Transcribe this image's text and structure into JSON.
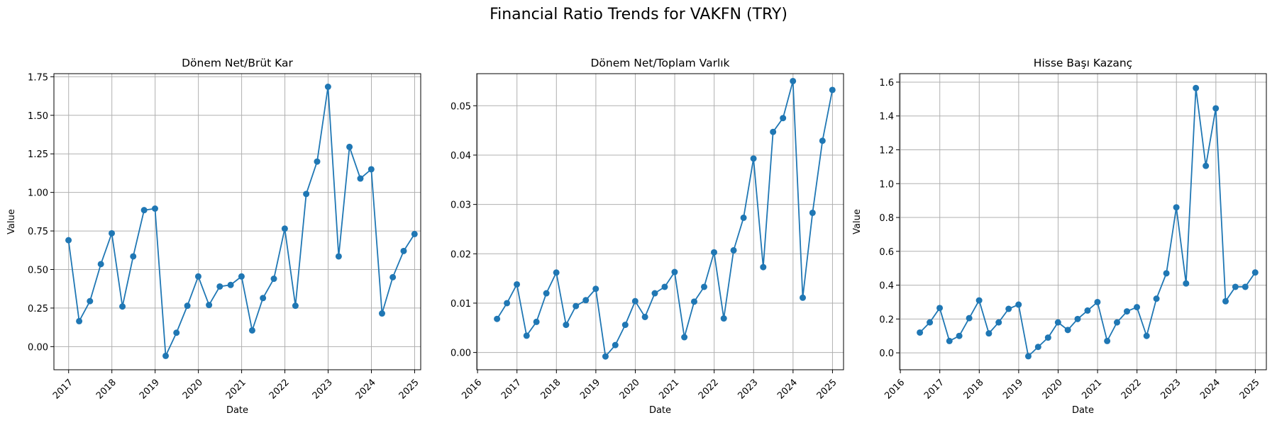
{
  "figure": {
    "title": "Financial Ratio Trends for VAKFN (TRY)",
    "line_color": "#1f77b4"
  },
  "chart_data": [
    {
      "type": "line",
      "title": "Dönem Net/Brüt Kar",
      "xlabel": "Date",
      "ylabel": "Value",
      "xlim": [
        2016.66,
        2025.14
      ],
      "ylim": [
        -0.15,
        1.77
      ],
      "yticks": [
        0.0,
        0.25,
        0.5,
        0.75,
        1.0,
        1.25,
        1.5,
        1.75
      ],
      "ytick_labels": [
        "0.00",
        "0.25",
        "0.50",
        "0.75",
        "1.00",
        "1.25",
        "1.50",
        "1.75"
      ],
      "xticks": [
        2017,
        2018,
        2019,
        2020,
        2021,
        2022,
        2023,
        2024,
        2025
      ],
      "xtick_labels": [
        "2017",
        "2018",
        "2019",
        "2020",
        "2021",
        "2022",
        "2023",
        "2024",
        "2025"
      ],
      "grid": true,
      "series": [
        {
          "x": [
            "2016-12-31",
            "2017-03-31",
            "2017-06-30",
            "2017-09-30",
            "2017-12-31",
            "2018-03-31",
            "2018-06-30",
            "2018-09-30",
            "2018-12-31",
            "2019-03-31",
            "2019-06-30",
            "2019-09-30",
            "2019-12-31",
            "2020-03-31",
            "2020-06-30",
            "2020-09-30",
            "2020-12-31",
            "2021-03-31",
            "2021-06-30",
            "2021-09-30",
            "2021-12-31",
            "2022-03-31",
            "2022-06-30",
            "2022-09-30",
            "2022-12-31",
            "2023-03-31",
            "2023-06-30",
            "2023-09-30",
            "2023-12-31",
            "2024-03-31",
            "2024-06-30",
            "2024-09-30",
            "2024-12-31"
          ],
          "values": [
            0.69,
            0.165,
            0.295,
            0.535,
            0.735,
            0.26,
            0.585,
            0.885,
            0.895,
            -0.06,
            0.09,
            0.265,
            0.455,
            0.27,
            0.39,
            0.4,
            0.455,
            0.105,
            0.315,
            0.44,
            0.765,
            0.265,
            0.99,
            1.2,
            1.685,
            0.585,
            1.295,
            1.09,
            1.15,
            0.215,
            0.45,
            0.62,
            0.73
          ]
        }
      ]
    },
    {
      "type": "line",
      "title": "Dönem Net/Toplam Varlık",
      "xlabel": "Date",
      "ylabel": "",
      "xlim": [
        2015.98,
        2025.28
      ],
      "ylim": [
        -0.0035,
        0.0565
      ],
      "yticks": [
        0.0,
        0.01,
        0.02,
        0.03,
        0.04,
        0.05
      ],
      "ytick_labels": [
        "0.00",
        "0.01",
        "0.02",
        "0.03",
        "0.04",
        "0.05"
      ],
      "xticks": [
        2016,
        2017,
        2018,
        2019,
        2020,
        2021,
        2022,
        2023,
        2024,
        2025
      ],
      "xtick_labels": [
        "2016",
        "2017",
        "2018",
        "2019",
        "2020",
        "2021",
        "2022",
        "2023",
        "2024",
        "2025"
      ],
      "grid": true,
      "series": [
        {
          "x": [
            "2016-06-30",
            "2016-09-30",
            "2016-12-31",
            "2017-03-31",
            "2017-06-30",
            "2017-09-30",
            "2017-12-31",
            "2018-03-31",
            "2018-06-30",
            "2018-09-30",
            "2018-12-31",
            "2019-03-31",
            "2019-06-30",
            "2019-09-30",
            "2019-12-31",
            "2020-03-31",
            "2020-06-30",
            "2020-09-30",
            "2020-12-31",
            "2021-03-31",
            "2021-06-30",
            "2021-09-30",
            "2021-12-31",
            "2022-03-31",
            "2022-06-30",
            "2022-09-30",
            "2022-12-31",
            "2023-03-31",
            "2023-06-30",
            "2023-09-30",
            "2023-12-31",
            "2024-03-31",
            "2024-06-30",
            "2024-09-30",
            "2024-12-31"
          ],
          "values": [
            0.0068,
            0.01,
            0.0138,
            0.0034,
            0.0062,
            0.012,
            0.0162,
            0.0056,
            0.0094,
            0.0106,
            0.0129,
            -0.0008,
            0.0015,
            0.0056,
            0.0104,
            0.0072,
            0.012,
            0.0133,
            0.0163,
            0.0031,
            0.0103,
            0.0133,
            0.0203,
            0.0069,
            0.0207,
            0.0273,
            0.0393,
            0.0173,
            0.0447,
            0.0475,
            0.055,
            0.0111,
            0.0283,
            0.0429,
            0.0532
          ]
        }
      ]
    },
    {
      "type": "line",
      "title": "Hisse Başı Kazanç",
      "xlabel": "Date",
      "ylabel": "Value",
      "xlim": [
        2015.98,
        2025.28
      ],
      "ylim": [
        -0.1,
        1.65
      ],
      "yticks": [
        0.0,
        0.2,
        0.4,
        0.6,
        0.8,
        1.0,
        1.2,
        1.4,
        1.6
      ],
      "ytick_labels": [
        "0.0",
        "0.2",
        "0.4",
        "0.6",
        "0.8",
        "1.0",
        "1.2",
        "1.4",
        "1.6"
      ],
      "xticks": [
        2016,
        2017,
        2018,
        2019,
        2020,
        2021,
        2022,
        2023,
        2024,
        2025
      ],
      "xtick_labels": [
        "2016",
        "2017",
        "2018",
        "2019",
        "2020",
        "2021",
        "2022",
        "2023",
        "2024",
        "2025"
      ],
      "grid": true,
      "series": [
        {
          "x": [
            "2016-06-30",
            "2016-09-30",
            "2016-12-31",
            "2017-03-31",
            "2017-06-30",
            "2017-09-30",
            "2017-12-31",
            "2018-03-31",
            "2018-06-30",
            "2018-09-30",
            "2018-12-31",
            "2019-03-31",
            "2019-06-30",
            "2019-09-30",
            "2019-12-31",
            "2020-03-31",
            "2020-06-30",
            "2020-09-30",
            "2020-12-31",
            "2021-03-31",
            "2021-06-30",
            "2021-09-30",
            "2021-12-31",
            "2022-03-31",
            "2022-06-30",
            "2022-09-30",
            "2022-12-31",
            "2023-03-31",
            "2023-06-30",
            "2023-09-30",
            "2023-12-31",
            "2024-03-31",
            "2024-06-30",
            "2024-09-30",
            "2024-12-31"
          ],
          "values": [
            0.12,
            0.18,
            0.265,
            0.07,
            0.1,
            0.205,
            0.31,
            0.115,
            0.18,
            0.26,
            0.285,
            -0.02,
            0.035,
            0.09,
            0.18,
            0.135,
            0.2,
            0.25,
            0.3,
            0.07,
            0.18,
            0.245,
            0.27,
            0.1,
            0.32,
            0.47,
            0.86,
            0.41,
            1.565,
            1.105,
            1.445,
            0.305,
            0.39,
            0.39,
            0.475
          ]
        }
      ]
    }
  ]
}
